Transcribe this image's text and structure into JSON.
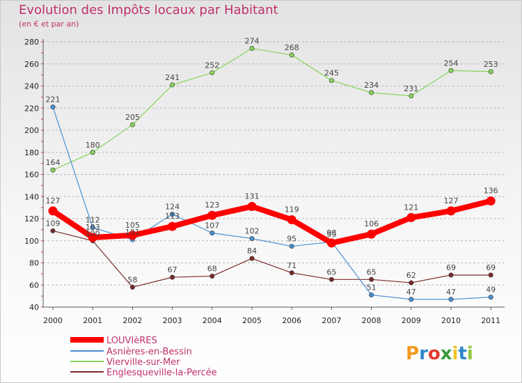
{
  "chart_data": {
    "type": "line",
    "title": "Evolution des Impôts locaux par Habitant",
    "subtitle": "(en € et par an)",
    "x": [
      "2000",
      "2001",
      "2002",
      "2003",
      "2004",
      "2005",
      "2006",
      "2007",
      "2008",
      "2009",
      "2010",
      "2011"
    ],
    "yticks": [
      "40",
      "60",
      "80",
      "100",
      "120",
      "140",
      "160",
      "180",
      "200",
      "220",
      "240",
      "260",
      "280"
    ],
    "ylim": [
      40,
      280
    ],
    "grid": "horizontal dashed",
    "series": [
      {
        "name": "LOUVIèRES",
        "color": "#ff0000",
        "values": [
          127,
          103,
          105,
          113,
          123,
          131,
          119,
          98,
          106,
          121,
          127,
          136
        ],
        "labels": [
          "127",
          "103",
          "105",
          "113",
          "123",
          "131",
          "119",
          "98",
          "106",
          "121",
          "127",
          "136"
        ]
      },
      {
        "name": "Asnières-en-Bessin",
        "color": "#4a8fcf",
        "values": [
          221,
          112,
          101,
          124,
          107,
          102,
          95,
          99,
          51,
          47,
          47,
          49
        ],
        "labels": [
          "221",
          "112",
          "101",
          "124",
          "107",
          "102",
          "95",
          "99",
          "51",
          "47",
          "47",
          "49"
        ]
      },
      {
        "name": "Vierville-sur-Mer",
        "color": "#86d35b",
        "values": [
          164,
          180,
          205,
          241,
          252,
          274,
          268,
          245,
          234,
          231,
          254,
          253
        ],
        "labels": [
          "164",
          "180",
          "205",
          "241",
          "252",
          "274",
          "268",
          "245",
          "234",
          "231",
          "254",
          "253"
        ]
      },
      {
        "name": "Englesqueville-la-Percée",
        "color": "#7a2a2a",
        "values": [
          109,
          100,
          58,
          67,
          68,
          84,
          71,
          65,
          65,
          62,
          69,
          69
        ],
        "labels": [
          "109",
          "100",
          "58",
          "67",
          "68",
          "84",
          "71",
          "65",
          "65",
          "62",
          "69",
          "69"
        ]
      }
    ]
  },
  "logo": {
    "text": "Proxiti"
  }
}
